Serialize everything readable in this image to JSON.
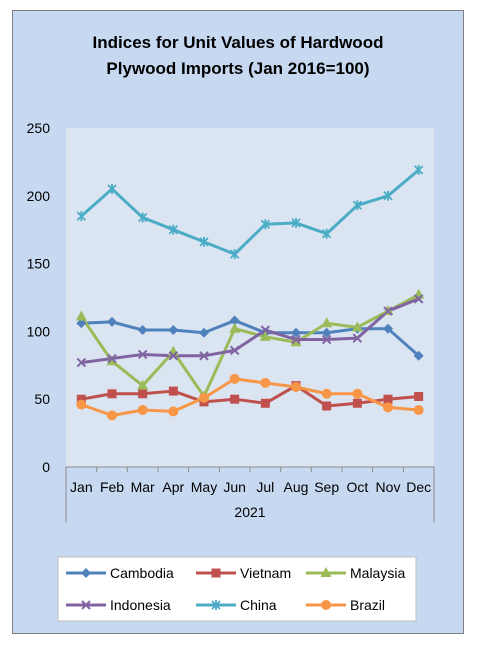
{
  "chart_data": {
    "type": "line",
    "title_line1": "Indices for Unit Values of Hardwood",
    "title_line2": "Plywood Imports (Jan 2016=100)",
    "year_label": "2021",
    "categories": [
      "Jan",
      "Feb",
      "Mar",
      "Apr",
      "May",
      "Jun",
      "Jul",
      "Aug",
      "Sep",
      "Oct",
      "Nov",
      "Dec"
    ],
    "ylim": [
      0,
      250
    ],
    "yticks": [
      0,
      50,
      100,
      150,
      200,
      250
    ],
    "grid": false,
    "legend_position": "bottom",
    "series": [
      {
        "name": "Cambodia",
        "color": "#4f81bd",
        "marker": "diamond",
        "values": [
          106,
          107,
          101,
          101,
          99,
          108,
          99,
          99,
          99,
          102,
          102,
          82
        ]
      },
      {
        "name": "Vietnam",
        "color": "#c0504d",
        "marker": "square",
        "values": [
          50,
          54,
          54,
          56,
          48,
          50,
          47,
          60,
          45,
          47,
          50,
          52
        ]
      },
      {
        "name": "Malaysia",
        "color": "#9bbb59",
        "marker": "triangle",
        "values": [
          111,
          78,
          60,
          85,
          52,
          102,
          96,
          92,
          106,
          103,
          115,
          127
        ]
      },
      {
        "name": "Indonesia",
        "color": "#8064a2",
        "marker": "x",
        "values": [
          77,
          80,
          83,
          82,
          82,
          86,
          101,
          94,
          94,
          95,
          115,
          124
        ]
      },
      {
        "name": "China",
        "color": "#4bacc6",
        "marker": "star",
        "values": [
          185,
          205,
          184,
          175,
          166,
          157,
          179,
          180,
          172,
          193,
          200,
          219
        ]
      },
      {
        "name": "Brazil",
        "color": "#f79646",
        "marker": "circle",
        "values": [
          46,
          38,
          42,
          41,
          51,
          65,
          62,
          59,
          54,
          54,
          44,
          42
        ]
      }
    ]
  }
}
